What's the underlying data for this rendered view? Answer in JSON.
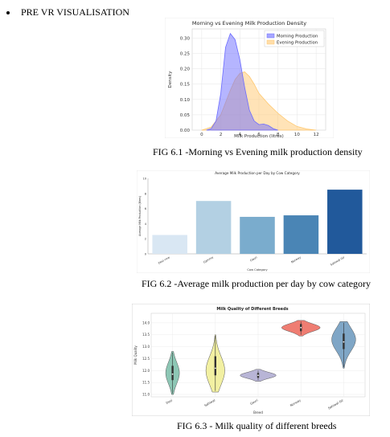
{
  "heading": "PRE VR VISUALISATION",
  "captions": {
    "fig1": "FIG 6.1 -Morning vs Evening milk production density",
    "fig2": "FIG 6.2 -Average milk production per day by cow category",
    "fig3": "FIG 6.3 - Milk quality of different breeds"
  },
  "chart_data": [
    {
      "type": "area",
      "title": "Morning vs Evening Milk Production Density",
      "xlabel": "Milk Production (litres)",
      "ylabel": "Density",
      "xlim": [
        -1,
        13
      ],
      "ylim": [
        0,
        0.33
      ],
      "xticks": [
        0,
        2,
        4,
        6,
        8,
        10,
        12
      ],
      "yticks": [
        0.0,
        0.05,
        0.1,
        0.15,
        0.2,
        0.25,
        0.3
      ],
      "ytick_labels": [
        "0.00",
        "0.05",
        "0.10",
        "0.15",
        "0.20",
        "0.25",
        "0.30"
      ],
      "legend_placement": "top-right",
      "grid": true,
      "series": [
        {
          "name": "Morning Production",
          "color": "#6b6bff",
          "x": [
            0.5,
            1.0,
            1.5,
            2.0,
            2.5,
            3.0,
            3.5,
            4.0,
            4.5,
            5.0,
            5.5,
            6.0,
            6.5,
            7.0,
            7.5,
            8.0
          ],
          "values": [
            0.0,
            0.005,
            0.03,
            0.12,
            0.27,
            0.315,
            0.295,
            0.23,
            0.14,
            0.065,
            0.03,
            0.018,
            0.02,
            0.015,
            0.005,
            0.0
          ]
        },
        {
          "name": "Evening Production",
          "color": "#ffc870",
          "x": [
            0,
            1,
            2,
            3,
            3.5,
            4,
            4.5,
            5,
            5.5,
            6,
            7,
            8,
            9,
            10,
            11,
            12
          ],
          "values": [
            0.0,
            0.01,
            0.05,
            0.13,
            0.165,
            0.185,
            0.19,
            0.175,
            0.15,
            0.12,
            0.085,
            0.055,
            0.03,
            0.012,
            0.004,
            0.0
          ]
        }
      ]
    },
    {
      "type": "bar",
      "title": "Average Milk Production per Day by Cow Category",
      "xlabel": "Cow Category",
      "ylabel": "Average Milk Production (litres)",
      "ylim": [
        0,
        10
      ],
      "yticks": [
        0,
        2,
        4,
        6,
        8,
        10
      ],
      "categories": [
        "Desi cow",
        "Gamme",
        "Gauri",
        "Norway",
        "Sahiwal Gir"
      ],
      "values": [
        2.5,
        7.0,
        4.9,
        5.1,
        8.5
      ],
      "colors": [
        "#d9e7f3",
        "#b3d0e3",
        "#7aaccd",
        "#4a85b5",
        "#21599b"
      ]
    },
    {
      "type": "violin",
      "title": "Milk Quality of  Different Breeds",
      "xlabel": "Breed",
      "ylabel": "Milk Quality",
      "ylim": [
        10.9,
        14.4
      ],
      "yticks": [
        11.0,
        11.5,
        12.0,
        12.5,
        13.0,
        13.5,
        14.0
      ],
      "ytick_labels": [
        "11.0",
        "11.5",
        "12.0",
        "12.5",
        "13.0",
        "13.5",
        "14.0"
      ],
      "categories": [
        "Desi",
        "Sahiwal",
        "Gauri",
        "Norway",
        "Sahiwal Gir"
      ],
      "colors": [
        "#8dc7b5",
        "#f2f0a2",
        "#b8b5d6",
        "#ef7d72",
        "#7fa6c6"
      ],
      "distributions": [
        {
          "min": 11.0,
          "max": 12.8,
          "q1": 11.6,
          "median": 11.85,
          "q3": 12.2,
          "mode": 11.9,
          "half_width": 0.16
        },
        {
          "min": 11.1,
          "max": 13.5,
          "q1": 11.8,
          "median": 12.1,
          "q3": 12.6,
          "mode": 12.0,
          "half_width": 0.22
        },
        {
          "min": 11.55,
          "max": 12.05,
          "q1": 11.7,
          "median": 11.8,
          "q3": 11.9,
          "mode": 11.8,
          "half_width": 0.42
        },
        {
          "min": 13.45,
          "max": 14.1,
          "q1": 13.65,
          "median": 13.8,
          "q3": 13.95,
          "mode": 13.8,
          "half_width": 0.45
        },
        {
          "min": 12.1,
          "max": 14.05,
          "q1": 12.9,
          "median": 13.2,
          "q3": 13.55,
          "mode": 13.3,
          "half_width": 0.28
        }
      ]
    }
  ]
}
